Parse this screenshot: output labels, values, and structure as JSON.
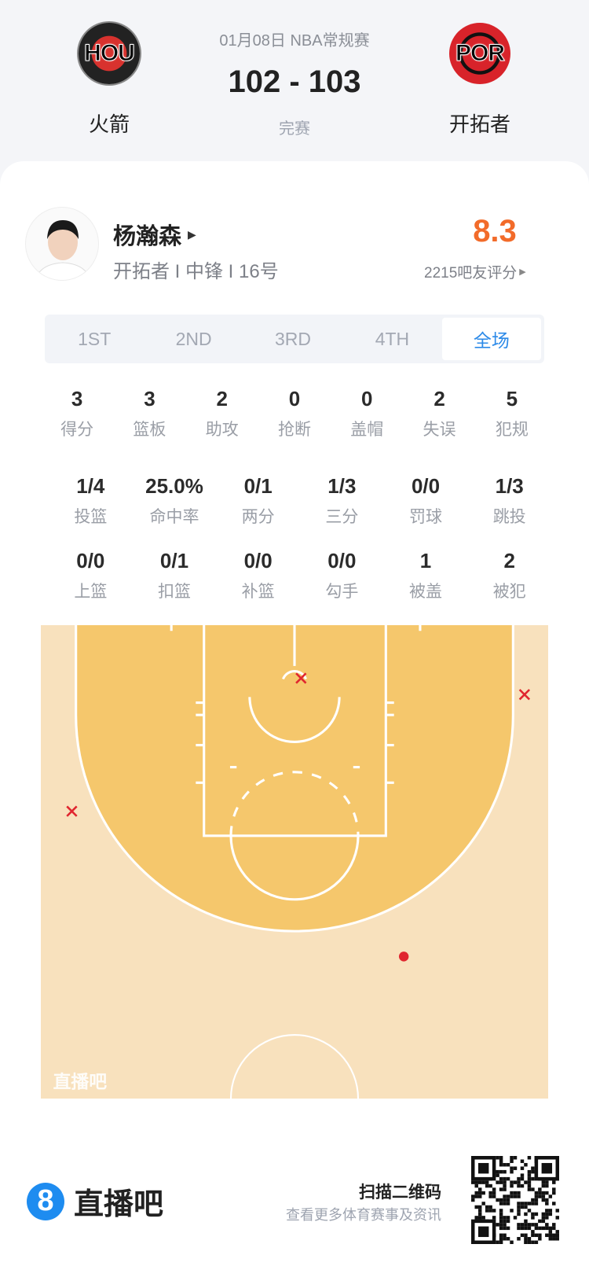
{
  "match": {
    "date_type": "01月08日 NBA常规赛",
    "score": "102 - 103",
    "status": "完赛",
    "home": {
      "abbr": "HOU",
      "name": "火箭"
    },
    "away": {
      "abbr": "POR",
      "name": "开拓者"
    }
  },
  "player": {
    "name": "杨瀚森",
    "info": "开拓者 I 中锋 I 16号",
    "rating": "8.3",
    "rating_label": "2215吧友评分"
  },
  "tabs": [
    "1ST",
    "2ND",
    "3RD",
    "4TH",
    "全场"
  ],
  "active_tab": "全场",
  "stats_row1": [
    {
      "v": "3",
      "l": "得分"
    },
    {
      "v": "3",
      "l": "篮板"
    },
    {
      "v": "2",
      "l": "助攻"
    },
    {
      "v": "0",
      "l": "抢断"
    },
    {
      "v": "0",
      "l": "盖帽"
    },
    {
      "v": "2",
      "l": "失误"
    },
    {
      "v": "5",
      "l": "犯规"
    }
  ],
  "stats_row2": [
    {
      "v": "1/4",
      "l": "投篮"
    },
    {
      "v": "25.0%",
      "l": "命中率"
    },
    {
      "v": "0/1",
      "l": "两分"
    },
    {
      "v": "1/3",
      "l": "三分"
    },
    {
      "v": "0/0",
      "l": "罚球"
    },
    {
      "v": "1/3",
      "l": "跳投"
    }
  ],
  "stats_row3": [
    {
      "v": "0/0",
      "l": "上篮"
    },
    {
      "v": "0/1",
      "l": "扣篮"
    },
    {
      "v": "0/0",
      "l": "补篮"
    },
    {
      "v": "0/0",
      "l": "勾手"
    },
    {
      "v": "1",
      "l": "被盖"
    },
    {
      "v": "2",
      "l": "被犯"
    }
  ],
  "shot_chart": {
    "watermark": "直播吧",
    "made": 1,
    "missed": 3,
    "colors": {
      "made": "#e0262f",
      "missed": "#e0262f",
      "inner": "#f5c76c",
      "outer": "#f8e1bd"
    }
  },
  "footer": {
    "brand": "直播吧",
    "scan": "扫描二维码",
    "sub": "查看更多体育赛事及资讯"
  },
  "colors": {
    "accent": "#2c8ae8",
    "rating": "#f26b2a"
  }
}
